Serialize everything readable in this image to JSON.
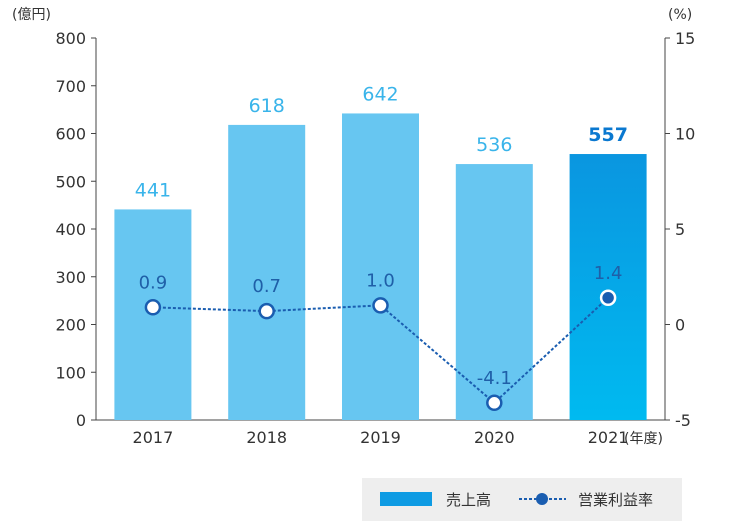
{
  "chart_data": {
    "type": "bar",
    "categories": [
      "2017",
      "2018",
      "2019",
      "2020",
      "2021"
    ],
    "x_unit": "(年度)",
    "y_left": {
      "unit": "(億円)",
      "ylim": [
        0,
        800
      ],
      "ticks": [
        "0",
        "100",
        "200",
        "300",
        "400",
        "500",
        "600",
        "700",
        "800"
      ]
    },
    "y_right": {
      "unit": "(%)",
      "ylim": [
        -5,
        15
      ],
      "ticks": [
        "-5",
        "0",
        "5",
        "10",
        "15"
      ]
    },
    "series": [
      {
        "name": "売上高",
        "type": "bar",
        "axis": "left",
        "values": [
          441,
          618,
          642,
          536,
          557
        ],
        "labels": [
          "441",
          "618",
          "642",
          "536",
          "557"
        ]
      },
      {
        "name": "営業利益率",
        "type": "line",
        "axis": "right",
        "values": [
          0.9,
          0.7,
          1.0,
          -4.1,
          1.4
        ],
        "labels": [
          "0.9",
          "0.7",
          "1.0",
          "-4.1",
          "1.4"
        ]
      }
    ],
    "legend": "bottom-right",
    "grid": false,
    "colors": {
      "bar": "#67c6f1",
      "bar_highlight_top": "#0a96e0",
      "bar_highlight_bottom": "#00baf0",
      "bar_label": "#39b4ea",
      "bar_label_highlight": "#0a78d0",
      "line": "#1a5db0",
      "point_label": "#1f5fa8",
      "legend_bg": "#eeeeee",
      "legend_bar": "#0e9be3"
    }
  }
}
